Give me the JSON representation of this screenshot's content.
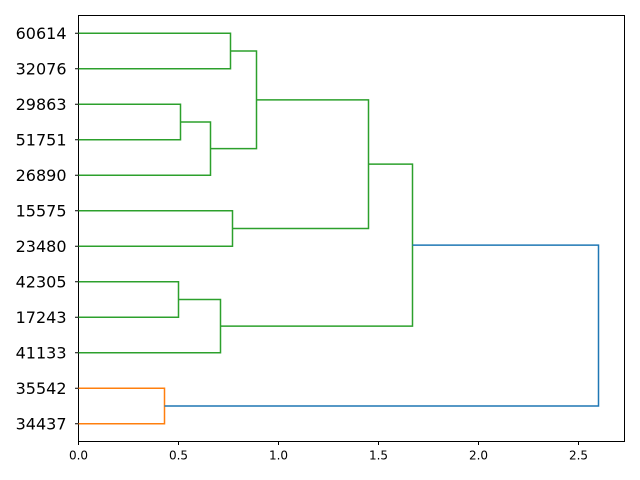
{
  "chart_data": {
    "type": "dendrogram",
    "orientation": "left",
    "title": "",
    "xlabel": "",
    "ylabel": "",
    "xlim": [
      0,
      2.73
    ],
    "x_ticks": [
      "0.0",
      "0.5",
      "1.0",
      "1.5",
      "2.0",
      "2.5"
    ],
    "x_tick_values": [
      0,
      0.5,
      1.0,
      1.5,
      2.0,
      2.5
    ],
    "leaves": [
      "60614",
      "32076",
      "29863",
      "51751",
      "26890",
      "15575",
      "23480",
      "42305",
      "17243",
      "41133",
      "35542",
      "34437"
    ],
    "colors": {
      "green": "#2ca02c",
      "orange": "#ff7f0e",
      "blue": "#1f77b4"
    },
    "links": [
      {
        "left": "60614",
        "right": "32076",
        "height": 0.76,
        "color": "green"
      },
      {
        "left": "29863",
        "right": "51751",
        "height": 0.51,
        "color": "green"
      },
      {
        "left": "[29863,51751]",
        "right": "26890",
        "height": 0.66,
        "color": "green"
      },
      {
        "left": "[60614,32076]",
        "right": "[29863,51751,26890]",
        "height": 0.89,
        "color": "green"
      },
      {
        "left": "15575",
        "right": "23480",
        "height": 0.77,
        "color": "green"
      },
      {
        "left": "[60614..26890]",
        "right": "[15575,23480]",
        "height": 1.45,
        "color": "green"
      },
      {
        "left": "42305",
        "right": "17243",
        "height": 0.5,
        "color": "green"
      },
      {
        "left": "[42305,17243]",
        "right": "41133",
        "height": 0.71,
        "color": "green"
      },
      {
        "left": "[60614..23480]",
        "right": "[42305..41133]",
        "height": 1.67,
        "color": "green"
      },
      {
        "left": "35542",
        "right": "34437",
        "height": 0.43,
        "color": "orange"
      },
      {
        "left": "[60614..41133]",
        "right": "[35542,34437]",
        "height": 2.6,
        "color": "blue"
      }
    ]
  }
}
